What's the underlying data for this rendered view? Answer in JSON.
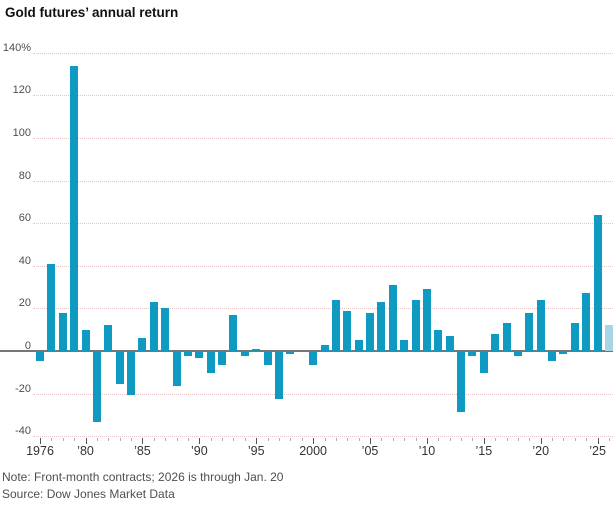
{
  "title": "Gold futures’ annual return",
  "note": "Note: Front-month contracts; 2026 is through Jan. 20",
  "source": "Source: Dow Jones Market Data",
  "colors": {
    "bar": "#0f9bc1",
    "bar_partial": "#a8d5e3",
    "zero_line": "#767676",
    "gridline": "#e4c6c6",
    "tick_minor": "#b0b0b0",
    "tick_major": "#555555"
  },
  "chart_data": {
    "type": "bar",
    "title": "Gold futures’ annual return",
    "unit": "%",
    "ylim": [
      -40,
      140
    ],
    "grid": "horizontal-dotted",
    "legend": "none",
    "years": [
      1976,
      1977,
      1978,
      1979,
      1980,
      1981,
      1982,
      1983,
      1984,
      1985,
      1986,
      1987,
      1988,
      1989,
      1990,
      1991,
      1992,
      1993,
      1994,
      1995,
      1996,
      1997,
      1998,
      1999,
      2000,
      2001,
      2002,
      2003,
      2004,
      2005,
      2006,
      2007,
      2008,
      2009,
      2010,
      2011,
      2012,
      2013,
      2014,
      2015,
      2016,
      2017,
      2018,
      2019,
      2020,
      2021,
      2022,
      2023,
      2024,
      2025,
      2026
    ],
    "values": [
      -4,
      41,
      18,
      134,
      10,
      -33,
      12,
      -15,
      -20,
      6,
      23,
      20,
      -16,
      -2,
      -3,
      -10,
      -6,
      17,
      -2,
      1,
      -6,
      -22,
      -1,
      0,
      -6,
      3,
      24,
      19,
      5,
      18,
      23,
      31,
      5,
      24,
      29,
      10,
      7,
      -28,
      -2,
      -10,
      8,
      13,
      -2,
      18,
      24,
      -4,
      -1,
      13,
      27,
      64,
      12
    ],
    "partial_year": 2026,
    "partial_note": "2026 is through Jan. 20",
    "y_ticks": [
      {
        "value": 140,
        "label": "140%"
      },
      {
        "value": 120,
        "label": "120"
      },
      {
        "value": 100,
        "label": "100"
      },
      {
        "value": 80,
        "label": "80"
      },
      {
        "value": 60,
        "label": "60"
      },
      {
        "value": 40,
        "label": "40"
      },
      {
        "value": 20,
        "label": "20"
      },
      {
        "value": 0,
        "label": "0"
      },
      {
        "value": -20,
        "label": "-20"
      },
      {
        "value": -40,
        "label": "-40"
      }
    ],
    "x_tick_labels": [
      {
        "year": 1976,
        "label": "1976"
      },
      {
        "year": 1980,
        "label": "’80"
      },
      {
        "year": 1985,
        "label": "’85"
      },
      {
        "year": 1990,
        "label": "’90"
      },
      {
        "year": 1995,
        "label": "’95"
      },
      {
        "year": 2000,
        "label": "2000"
      },
      {
        "year": 2005,
        "label": "’05"
      },
      {
        "year": 2010,
        "label": "’10"
      },
      {
        "year": 2015,
        "label": "’15"
      },
      {
        "year": 2020,
        "label": "’20"
      },
      {
        "year": 2025,
        "label": "’25"
      }
    ]
  }
}
